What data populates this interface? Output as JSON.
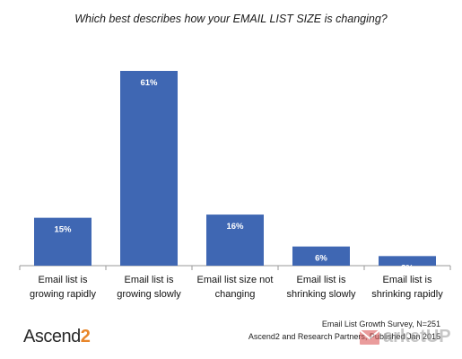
{
  "chart_data": {
    "type": "bar",
    "title": "Which best describes how your EMAIL LIST SIZE is changing?",
    "categories": [
      [
        "Email list is",
        "growing rapidly"
      ],
      [
        "Email list is",
        "growing slowly"
      ],
      [
        "Email list size not",
        "changing"
      ],
      [
        "Email list is",
        "shrinking slowly"
      ],
      [
        "Email list is",
        "shrinking rapidly"
      ]
    ],
    "values": [
      15,
      61,
      16,
      6,
      3
    ],
    "data_labels": [
      "15%",
      "61%",
      "16%",
      "6%",
      "3%"
    ],
    "ylim": [
      0,
      61
    ],
    "grid": false,
    "legend": "none",
    "bar_color": "#3f67b3"
  },
  "footer": {
    "source_line1": "Email List Growth Survey, N=251",
    "source_line2": "Ascend2 and Research Partners, Published Jan 2015",
    "logo_text": "Ascend",
    "logo_number": "2",
    "watermark_text": "arketUP"
  }
}
